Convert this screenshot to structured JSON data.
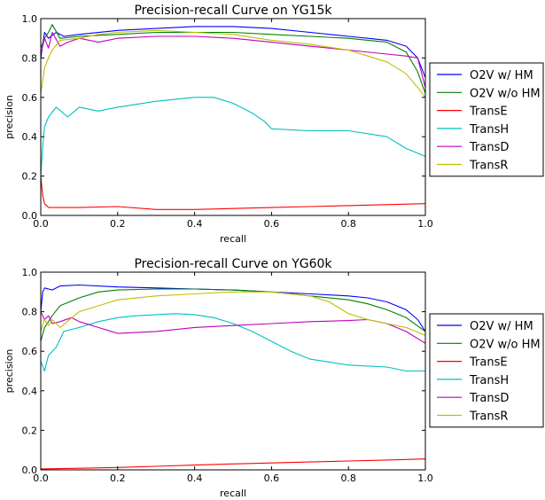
{
  "chart_data": [
    {
      "type": "line",
      "title": "Precision-recall Curve on YG15k",
      "xlabel": "recall",
      "ylabel": "precision",
      "xlim": [
        0,
        1
      ],
      "ylim": [
        0,
        1
      ],
      "xticks": [
        "0.0",
        "0.2",
        "0.4",
        "0.6",
        "0.8",
        "1.0"
      ],
      "yticks": [
        "0.0",
        "0.2",
        "0.4",
        "0.6",
        "0.8",
        "1.0"
      ],
      "legend_position": "right, outside",
      "series": [
        {
          "name": "O2V w/ HM",
          "color": "#0000ff",
          "x": [
            0.0,
            0.01,
            0.02,
            0.04,
            0.06,
            0.1,
            0.2,
            0.3,
            0.4,
            0.5,
            0.6,
            0.7,
            0.8,
            0.85,
            0.9,
            0.95,
            0.98,
            1.0
          ],
          "y": [
            0.8,
            0.93,
            0.9,
            0.93,
            0.91,
            0.92,
            0.94,
            0.95,
            0.96,
            0.96,
            0.95,
            0.93,
            0.91,
            0.9,
            0.89,
            0.86,
            0.8,
            0.7
          ]
        },
        {
          "name": "O2V w/o HM",
          "color": "#008000",
          "x": [
            0.0,
            0.01,
            0.02,
            0.03,
            0.05,
            0.1,
            0.2,
            0.3,
            0.4,
            0.5,
            0.6,
            0.7,
            0.8,
            0.85,
            0.9,
            0.95,
            0.98,
            1.0
          ],
          "y": [
            0.85,
            0.9,
            0.93,
            0.97,
            0.9,
            0.91,
            0.92,
            0.93,
            0.93,
            0.93,
            0.92,
            0.91,
            0.9,
            0.89,
            0.88,
            0.83,
            0.73,
            0.62
          ]
        },
        {
          "name": "TransE",
          "color": "#ff0000",
          "x": [
            0.0,
            0.005,
            0.01,
            0.02,
            0.05,
            0.1,
            0.2,
            0.3,
            0.4,
            0.5,
            0.6,
            0.7,
            0.8,
            0.9,
            1.0
          ],
          "y": [
            0.2,
            0.1,
            0.06,
            0.04,
            0.04,
            0.04,
            0.045,
            0.03,
            0.03,
            0.035,
            0.04,
            0.045,
            0.05,
            0.055,
            0.06
          ]
        },
        {
          "name": "TransH",
          "color": "#00bfbf",
          "x": [
            0.0,
            0.005,
            0.01,
            0.02,
            0.04,
            0.07,
            0.1,
            0.15,
            0.2,
            0.3,
            0.4,
            0.45,
            0.5,
            0.55,
            0.58,
            0.6,
            0.7,
            0.8,
            0.9,
            0.95,
            1.0
          ],
          "y": [
            0.2,
            0.35,
            0.45,
            0.5,
            0.55,
            0.5,
            0.55,
            0.53,
            0.55,
            0.58,
            0.6,
            0.6,
            0.57,
            0.52,
            0.48,
            0.44,
            0.43,
            0.43,
            0.4,
            0.34,
            0.3
          ]
        },
        {
          "name": "TransD",
          "color": "#bf00bf",
          "x": [
            0.0,
            0.01,
            0.02,
            0.03,
            0.05,
            0.07,
            0.1,
            0.15,
            0.2,
            0.3,
            0.4,
            0.5,
            0.6,
            0.7,
            0.8,
            0.9,
            0.95,
            0.98,
            1.0
          ],
          "y": [
            0.82,
            0.9,
            0.85,
            0.93,
            0.86,
            0.88,
            0.9,
            0.88,
            0.9,
            0.91,
            0.91,
            0.9,
            0.88,
            0.86,
            0.84,
            0.82,
            0.81,
            0.8,
            0.65
          ]
        },
        {
          "name": "TransR",
          "color": "#bfbf00",
          "x": [
            0.0,
            0.01,
            0.02,
            0.03,
            0.05,
            0.1,
            0.15,
            0.2,
            0.3,
            0.4,
            0.5,
            0.6,
            0.7,
            0.8,
            0.85,
            0.9,
            0.95,
            0.98,
            1.0
          ],
          "y": [
            0.62,
            0.75,
            0.8,
            0.84,
            0.89,
            0.9,
            0.92,
            0.93,
            0.94,
            0.93,
            0.92,
            0.89,
            0.87,
            0.84,
            0.81,
            0.78,
            0.72,
            0.65,
            0.6
          ]
        }
      ]
    },
    {
      "type": "line",
      "title": "Precision-recall Curve on YG60k",
      "xlabel": "recall",
      "ylabel": "precision",
      "xlim": [
        0,
        1
      ],
      "ylim": [
        0,
        1
      ],
      "xticks": [
        "0.0",
        "0.2",
        "0.4",
        "0.6",
        "0.8",
        "1.0"
      ],
      "yticks": [
        "0.0",
        "0.2",
        "0.4",
        "0.6",
        "0.8",
        "1.0"
      ],
      "legend_position": "right, outside",
      "series": [
        {
          "name": "O2V w/ HM",
          "color": "#0000ff",
          "x": [
            0.0,
            0.005,
            0.01,
            0.03,
            0.05,
            0.1,
            0.2,
            0.3,
            0.4,
            0.5,
            0.6,
            0.7,
            0.8,
            0.85,
            0.9,
            0.95,
            0.98,
            1.0
          ],
          "y": [
            0.8,
            0.9,
            0.92,
            0.91,
            0.93,
            0.935,
            0.925,
            0.92,
            0.915,
            0.91,
            0.9,
            0.89,
            0.88,
            0.87,
            0.85,
            0.81,
            0.76,
            0.7
          ]
        },
        {
          "name": "O2V w/o HM",
          "color": "#008000",
          "x": [
            0.0,
            0.01,
            0.03,
            0.05,
            0.1,
            0.15,
            0.2,
            0.3,
            0.4,
            0.5,
            0.6,
            0.7,
            0.8,
            0.85,
            0.9,
            0.95,
            1.0
          ],
          "y": [
            0.65,
            0.72,
            0.78,
            0.83,
            0.87,
            0.9,
            0.91,
            0.915,
            0.915,
            0.91,
            0.9,
            0.88,
            0.86,
            0.84,
            0.81,
            0.77,
            0.7
          ]
        },
        {
          "name": "TransE",
          "color": "#ff0000",
          "x": [
            0.0,
            0.1,
            0.2,
            0.3,
            0.4,
            0.5,
            0.6,
            0.7,
            0.8,
            0.9,
            1.0
          ],
          "y": [
            0.005,
            0.008,
            0.012,
            0.018,
            0.024,
            0.03,
            0.035,
            0.04,
            0.045,
            0.05,
            0.055
          ]
        },
        {
          "name": "TransH",
          "color": "#00bfbf",
          "x": [
            0.0,
            0.01,
            0.02,
            0.04,
            0.06,
            0.1,
            0.15,
            0.2,
            0.25,
            0.3,
            0.35,
            0.4,
            0.45,
            0.5,
            0.55,
            0.6,
            0.65,
            0.7,
            0.8,
            0.9,
            0.95,
            1.0
          ],
          "y": [
            0.55,
            0.5,
            0.58,
            0.62,
            0.7,
            0.72,
            0.75,
            0.77,
            0.78,
            0.785,
            0.79,
            0.785,
            0.77,
            0.74,
            0.7,
            0.65,
            0.6,
            0.56,
            0.53,
            0.52,
            0.5,
            0.5
          ]
        },
        {
          "name": "TransD",
          "color": "#bf00bf",
          "x": [
            0.0,
            0.01,
            0.02,
            0.03,
            0.05,
            0.08,
            0.1,
            0.15,
            0.2,
            0.3,
            0.4,
            0.5,
            0.6,
            0.7,
            0.8,
            0.85,
            0.9,
            0.95,
            1.0
          ],
          "y": [
            0.8,
            0.76,
            0.78,
            0.74,
            0.75,
            0.77,
            0.75,
            0.72,
            0.69,
            0.7,
            0.72,
            0.73,
            0.74,
            0.75,
            0.755,
            0.76,
            0.74,
            0.7,
            0.64
          ]
        },
        {
          "name": "TransR",
          "color": "#bfbf00",
          "x": [
            0.0,
            0.01,
            0.02,
            0.03,
            0.05,
            0.1,
            0.15,
            0.2,
            0.3,
            0.4,
            0.5,
            0.6,
            0.7,
            0.75,
            0.8,
            0.85,
            0.9,
            0.95,
            1.0
          ],
          "y": [
            0.7,
            0.76,
            0.73,
            0.76,
            0.72,
            0.8,
            0.83,
            0.86,
            0.88,
            0.89,
            0.9,
            0.9,
            0.88,
            0.85,
            0.79,
            0.76,
            0.74,
            0.72,
            0.68
          ]
        }
      ]
    }
  ]
}
